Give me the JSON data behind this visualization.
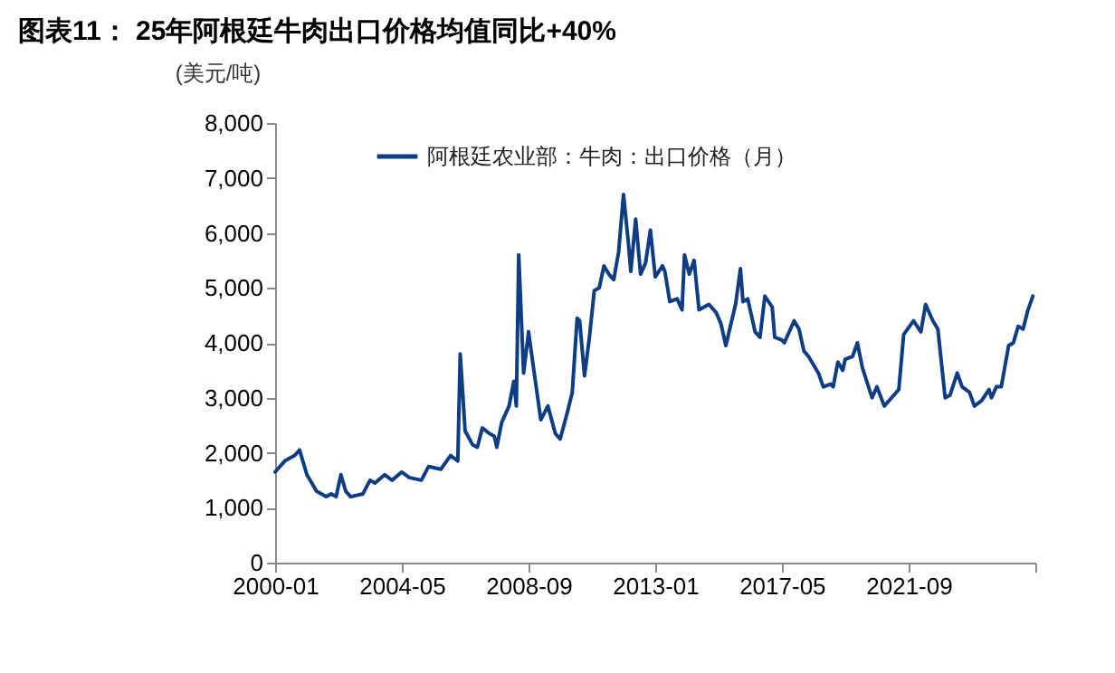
{
  "chart_data": {
    "type": "line",
    "title": "图表11： 25年阿根廷牛肉出口价格均值同比+40%",
    "ylabel": "(美元/吨)",
    "x": [
      "2000-01",
      "2000-05",
      "2000-09",
      "2000-11",
      "2001-02",
      "2001-06",
      "2001-10",
      "2001-12",
      "2002-02",
      "2002-04",
      "2002-06",
      "2002-08",
      "2003-01",
      "2003-04",
      "2003-06",
      "2003-10",
      "2004-01",
      "2004-05",
      "2004-08",
      "2005-01",
      "2005-04",
      "2005-09",
      "2006-01",
      "2006-04",
      "2006-05",
      "2006-07",
      "2006-10",
      "2006-12",
      "2007-02",
      "2007-05",
      "2007-07",
      "2007-08",
      "2007-10",
      "2008-01",
      "2008-03",
      "2008-04",
      "2008-05",
      "2008-07",
      "2008-09",
      "2008-11",
      "2009-02",
      "2009-05",
      "2009-08",
      "2009-10",
      "2010-01",
      "2010-03",
      "2010-05",
      "2010-06",
      "2010-08",
      "2010-10",
      "2010-12",
      "2011-02",
      "2011-04",
      "2011-06",
      "2011-08",
      "2011-10",
      "2011-12",
      "2012-02",
      "2012-03",
      "2012-05",
      "2012-07",
      "2012-09",
      "2012-11",
      "2013-01",
      "2013-04",
      "2013-05",
      "2013-07",
      "2013-10",
      "2013-12",
      "2014-01",
      "2014-03",
      "2014-05",
      "2014-07",
      "2014-11",
      "2015-02",
      "2015-04",
      "2015-06",
      "2015-10",
      "2015-12",
      "2016-01",
      "2016-03",
      "2016-06",
      "2016-08",
      "2016-10",
      "2017-01",
      "2017-02",
      "2017-05",
      "2017-06",
      "2017-10",
      "2017-12",
      "2018-02",
      "2018-04",
      "2018-08",
      "2018-10",
      "2019-01",
      "2019-02",
      "2019-04",
      "2019-06",
      "2019-07",
      "2019-10",
      "2019-12",
      "2020-02",
      "2020-06",
      "2020-08",
      "2020-11",
      "2021-01",
      "2021-05",
      "2021-07",
      "2021-11",
      "2022-02",
      "2022-04",
      "2022-07",
      "2022-09",
      "2022-12",
      "2023-02",
      "2023-05",
      "2023-07",
      "2023-10",
      "2023-12",
      "2024-03",
      "2024-06",
      "2024-07",
      "2024-09",
      "2024-11",
      "2025-02",
      "2025-04",
      "2025-06",
      "2025-08",
      "2025-10",
      "2025-12"
    ],
    "series": [
      {
        "name": "阿根廷农业部：牛肉：出口价格（月）",
        "color": "#0e3d84",
        "values": [
          1650,
          1850,
          1950,
          2050,
          1600,
          1300,
          1200,
          1250,
          1200,
          1600,
          1300,
          1200,
          1250,
          1500,
          1450,
          1600,
          1500,
          1650,
          1550,
          1500,
          1750,
          1700,
          1950,
          1850,
          3800,
          2400,
          2150,
          2100,
          2450,
          2350,
          2300,
          2100,
          2550,
          2850,
          3300,
          2850,
          5600,
          3450,
          4200,
          3550,
          2600,
          2850,
          2350,
          2250,
          2750,
          3100,
          4450,
          4400,
          3400,
          4100,
          4950,
          5000,
          5400,
          5250,
          5150,
          5650,
          6700,
          5800,
          5300,
          6250,
          5250,
          5450,
          6050,
          5200,
          5400,
          5300,
          4750,
          4800,
          4600,
          5600,
          5250,
          5500,
          4600,
          4700,
          4550,
          4350,
          3950,
          4700,
          5350,
          4750,
          4800,
          4200,
          4100,
          4850,
          4650,
          4100,
          4050,
          4000,
          4400,
          4250,
          3850,
          3750,
          3450,
          3200,
          3250,
          3200,
          3650,
          3500,
          3700,
          3750,
          4000,
          3550,
          3000,
          3200,
          2850,
          2950,
          3150,
          4150,
          4400,
          4200,
          4700,
          4400,
          4250,
          3000,
          3050,
          3450,
          3200,
          3100,
          2850,
          2950,
          3150,
          3000,
          3200,
          3200,
          3950,
          4000,
          4300,
          4250,
          4600,
          4850
        ]
      }
    ],
    "xlim": [
      "2000-01",
      "2026-01"
    ],
    "xticks": [
      "2000-01",
      "2004-05",
      "2008-09",
      "2013-01",
      "2017-05",
      "2021-09",
      {
        "value": "2026-01",
        "label": null
      }
    ],
    "ylim": [
      0,
      8000
    ],
    "yticks": [
      0,
      {
        "value": 1000,
        "label": "1,000"
      },
      {
        "value": 2000,
        "label": "2,000"
      },
      {
        "value": 3000,
        "label": "3,000"
      },
      {
        "value": 4000,
        "label": "4,000"
      },
      {
        "value": 5000,
        "label": "5,000"
      },
      {
        "value": 6000,
        "label": "6,000"
      },
      {
        "value": 7000,
        "label": "7,000"
      },
      {
        "value": 8000,
        "label": "8,000"
      }
    ],
    "grid": false,
    "legend": "top",
    "line_style": "solid",
    "marker": "none"
  }
}
